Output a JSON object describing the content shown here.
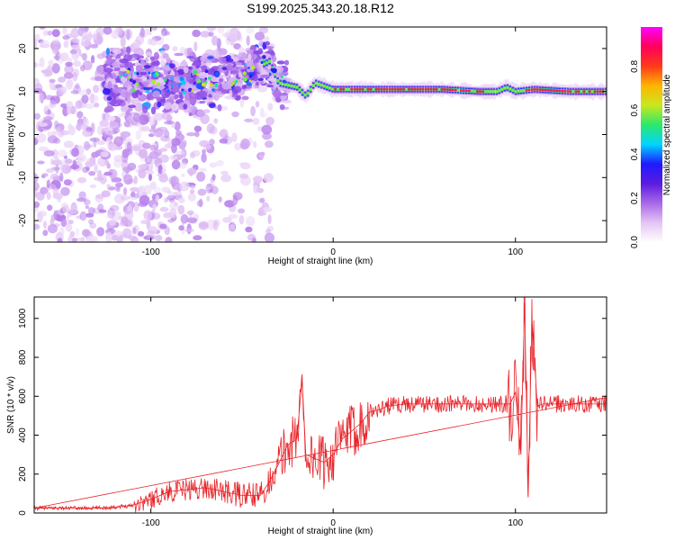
{
  "title": "S199.2025.343.20.18.R12",
  "colors": {
    "snr_line": "#e8242a",
    "axes": "#000000",
    "colormap": [
      "#ffffff",
      "#e3c4f5",
      "#a868e8",
      "#5a1be0",
      "#1e1aff",
      "#00d5ff",
      "#2ce86a",
      "#c9e81e",
      "#ffb400",
      "#ff3a1a",
      "#ff005a",
      "#ff00ff"
    ]
  },
  "chart_data": [
    {
      "type": "heatmap",
      "title": "",
      "xlabel": "Height of straight line (km)",
      "ylabel": "Frequency (Hz)",
      "xlim": [
        -164,
        150
      ],
      "ylim": [
        -25,
        25
      ],
      "x_ticks": [
        -100,
        0,
        100
      ],
      "y_ticks": [
        -20,
        -10,
        0,
        10,
        20
      ],
      "colorbar": {
        "label": "Normalized spectral amplitude",
        "range": [
          0.0,
          0.98
        ],
        "ticks": [
          0.0,
          0.2,
          0.4,
          0.6,
          0.8
        ]
      },
      "ridge_frequency_hz": [
        [
          -115,
          13
        ],
        [
          -100,
          12
        ],
        [
          -80,
          12
        ],
        [
          -60,
          13
        ],
        [
          -50,
          14
        ],
        [
          -40,
          16
        ],
        [
          -35,
          17
        ],
        [
          -30,
          12
        ],
        [
          -20,
          11
        ],
        [
          -15,
          9
        ],
        [
          -10,
          12
        ],
        [
          0,
          10.5
        ],
        [
          20,
          10.5
        ],
        [
          40,
          10.5
        ],
        [
          60,
          10.5
        ],
        [
          80,
          10
        ],
        [
          90,
          10
        ],
        [
          95,
          11
        ],
        [
          100,
          10
        ],
        [
          110,
          10.5
        ],
        [
          130,
          10
        ],
        [
          150,
          10
        ]
      ]
    },
    {
      "type": "line",
      "title": "",
      "xlabel": "Height of straight line (km)",
      "ylabel": "SNR (10 * v/v)",
      "xlim": [
        -164,
        150
      ],
      "ylim": [
        0,
        1110
      ],
      "x_ticks": [
        -100,
        0,
        100
      ],
      "y_ticks": [
        0,
        200,
        400,
        600,
        800,
        1000
      ],
      "series": [
        {
          "x": [
            -164,
            -150,
            -140,
            -130,
            -120,
            -110,
            -100,
            -90,
            -80,
            -70,
            -60,
            -50,
            -40,
            -35,
            -30,
            -25,
            -20,
            -17,
            -15,
            -10,
            -5,
            0,
            5,
            10,
            15,
            20,
            25,
            30,
            40,
            50,
            60,
            70,
            80,
            90,
            97,
            100,
            103,
            105,
            107,
            109,
            112,
            115,
            120,
            130,
            140,
            150
          ],
          "y": [
            25,
            25,
            25,
            25,
            30,
            40,
            70,
            110,
            120,
            130,
            110,
            90,
            90,
            160,
            250,
            350,
            380,
            680,
            300,
            280,
            260,
            300,
            380,
            420,
            460,
            520,
            530,
            550,
            560,
            560,
            560,
            560,
            560,
            560,
            560,
            620,
            300,
            1080,
            80,
            1000,
            550,
            560,
            560,
            560,
            560,
            560
          ]
        }
      ]
    }
  ]
}
